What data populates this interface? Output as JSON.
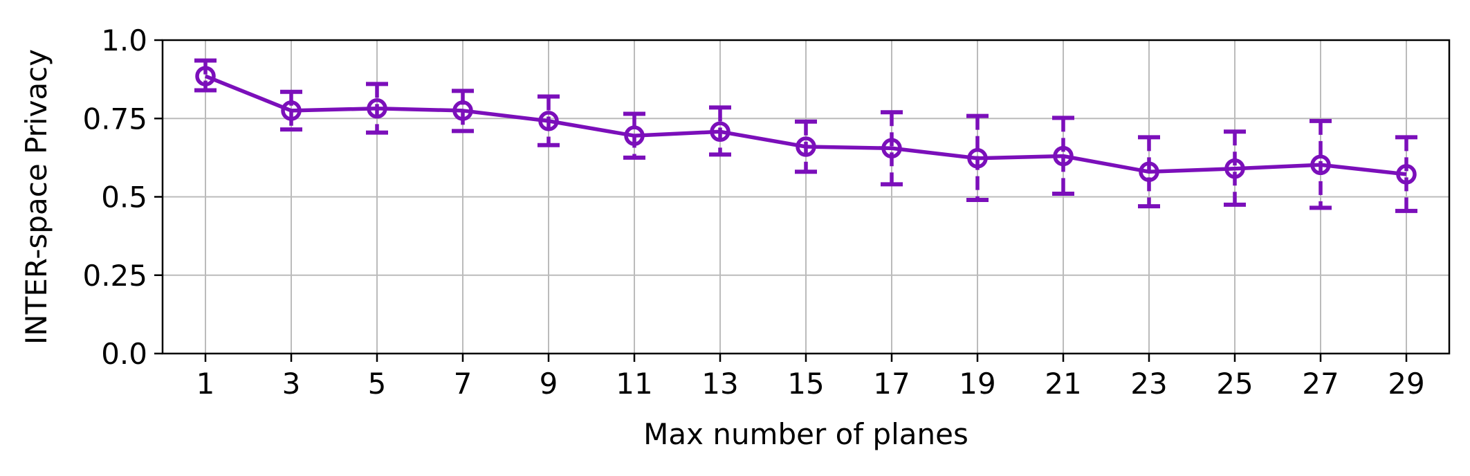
{
  "chart_data": {
    "type": "line",
    "title": "",
    "xlabel": "Max number of planes",
    "ylabel": "INTER-space Privacy",
    "x": [
      1,
      3,
      5,
      7,
      9,
      11,
      13,
      15,
      17,
      19,
      21,
      23,
      25,
      27,
      29
    ],
    "x_ticks": [
      "1",
      "3",
      "5",
      "7",
      "9",
      "11",
      "13",
      "15",
      "17",
      "19",
      "21",
      "23",
      "25",
      "27",
      "29"
    ],
    "xlim": [
      0,
      30
    ],
    "ylim": [
      0,
      1
    ],
    "y_ticks": [
      0,
      0.25,
      0.5,
      0.75,
      1.0
    ],
    "y_tick_labels": [
      "0.0",
      "0.25",
      "0.5",
      "0.75",
      "1.0"
    ],
    "grid": true,
    "series": [
      {
        "values": [
          0.885,
          0.775,
          0.782,
          0.775,
          0.742,
          0.695,
          0.708,
          0.66,
          0.655,
          0.623,
          0.63,
          0.58,
          0.59,
          0.602,
          0.572
        ],
        "error_low": [
          0.84,
          0.715,
          0.705,
          0.71,
          0.665,
          0.625,
          0.635,
          0.58,
          0.54,
          0.49,
          0.51,
          0.47,
          0.475,
          0.465,
          0.455
        ],
        "error_high": [
          0.935,
          0.835,
          0.86,
          0.838,
          0.82,
          0.765,
          0.785,
          0.74,
          0.77,
          0.758,
          0.752,
          0.69,
          0.708,
          0.742,
          0.69
        ],
        "color": "#7B0FBA",
        "marker": "open-circle",
        "error_style": "dashed"
      }
    ],
    "colors": {
      "series": "#7B0FBA",
      "grid": "#BBBBBB",
      "axes": "#000000"
    }
  }
}
